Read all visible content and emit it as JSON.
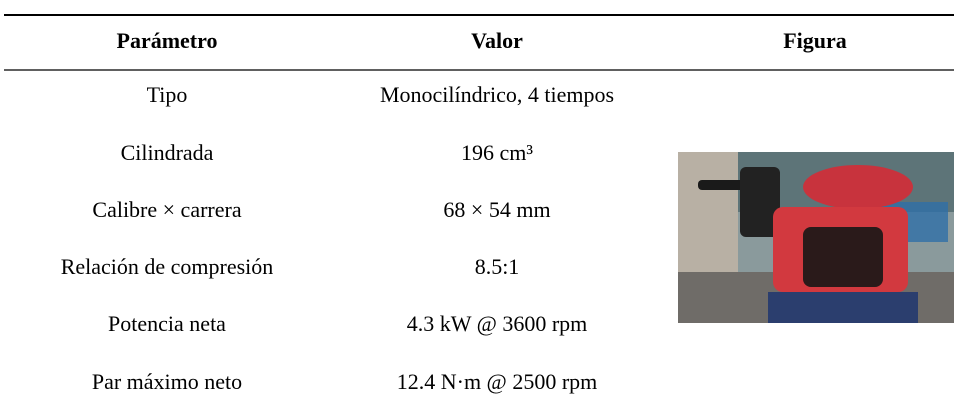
{
  "header": {
    "columns": [
      "Parámetro",
      "Valor",
      "Figura"
    ]
  },
  "table": {
    "rows": [
      [
        "Tipo",
        "Monocilíndrico, 4 tiempos"
      ],
      [
        "Cilindrada",
        "196 cm³"
      ],
      [
        "Calibre × carrera",
        "68 × 54 mm"
      ],
      [
        "Relación de compresión",
        "8.5:1"
      ],
      [
        "Potencia neta",
        "4.3 kW @ 3600 rpm"
      ],
      [
        "Par máximo neto",
        "12.4 N·m @ 2500 rpm"
      ]
    ]
  }
}
